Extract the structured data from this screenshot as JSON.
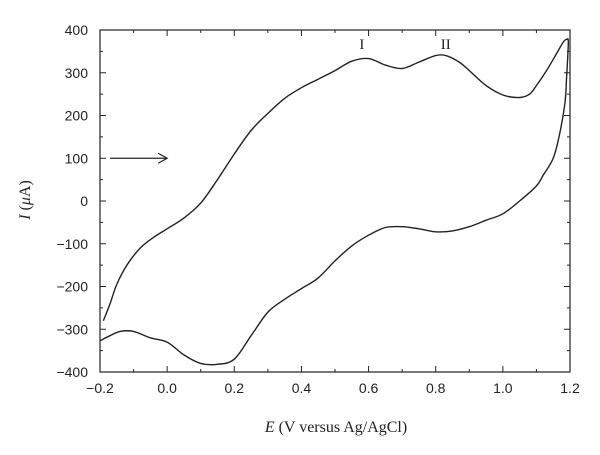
{
  "chart_data": {
    "type": "line",
    "title": "",
    "xlabel": "E (V versus Ag/AgCl)",
    "xlabel_var": "E",
    "xlabel_rest": " (V versus Ag/AgCl)",
    "ylabel": "I (μA)",
    "ylabel_var": "I",
    "ylabel_rest_open": " (",
    "ylabel_mu": "μ",
    "ylabel_rest_close": "A)",
    "xlim": [
      -0.2,
      1.2
    ],
    "ylim": [
      -400,
      400
    ],
    "x_ticks": [
      -0.2,
      0.0,
      0.2,
      0.4,
      0.6,
      0.8,
      1.0,
      1.2
    ],
    "x_tick_labels": [
      "−0.2",
      "0.0",
      "0.2",
      "0.4",
      "0.6",
      "0.8",
      "1.0",
      "1.2"
    ],
    "y_ticks": [
      400,
      300,
      200,
      100,
      0,
      -100,
      -200,
      -300,
      -400
    ],
    "y_tick_labels": [
      "400",
      "300",
      "200",
      "100",
      "0",
      "−100",
      "−200",
      "−300",
      "−400"
    ],
    "grid": false,
    "line_color": "#222222",
    "annotations": [
      {
        "text": "I",
        "x": 0.58,
        "y": 355
      },
      {
        "text": "II",
        "x": 0.83,
        "y": 355
      }
    ],
    "arrow": {
      "x_start": -0.17,
      "x_end": 0.0,
      "y": 100
    },
    "series": [
      {
        "x": [
          -0.19,
          -0.17,
          -0.15,
          -0.12,
          -0.08,
          -0.04,
          0.0,
          0.05,
          0.1,
          0.15,
          0.2,
          0.25,
          0.3,
          0.35,
          0.4,
          0.45,
          0.5,
          0.55,
          0.6,
          0.65,
          0.7,
          0.75,
          0.8,
          0.83,
          0.87,
          0.9,
          0.95,
          1.0,
          1.05,
          1.08,
          1.1,
          1.13,
          1.16,
          1.18,
          1.19,
          1.195,
          1.19,
          1.185,
          1.17,
          1.15,
          1.12,
          1.1,
          1.05,
          1.0,
          0.95,
          0.9,
          0.85,
          0.8,
          0.75,
          0.7,
          0.65,
          0.6,
          0.55,
          0.5,
          0.45,
          0.4,
          0.35,
          0.3,
          0.25,
          0.2,
          0.15,
          0.1,
          0.05,
          0.0,
          -0.05,
          -0.1,
          -0.14,
          -0.17,
          -0.2
        ],
        "y": [
          -280,
          -240,
          -195,
          -150,
          -110,
          -85,
          -65,
          -40,
          -5,
          50,
          110,
          165,
          205,
          240,
          265,
          285,
          305,
          327,
          333,
          318,
          310,
          325,
          340,
          340,
          325,
          305,
          270,
          248,
          242,
          250,
          270,
          305,
          345,
          372,
          378,
          370,
          290,
          230,
          160,
          100,
          60,
          35,
          0,
          -30,
          -45,
          -60,
          -70,
          -72,
          -65,
          -60,
          -62,
          -80,
          -105,
          -140,
          -180,
          -205,
          -230,
          -260,
          -315,
          -370,
          -382,
          -380,
          -360,
          -330,
          -320,
          -305,
          -305,
          -315,
          -327
        ]
      }
    ]
  }
}
